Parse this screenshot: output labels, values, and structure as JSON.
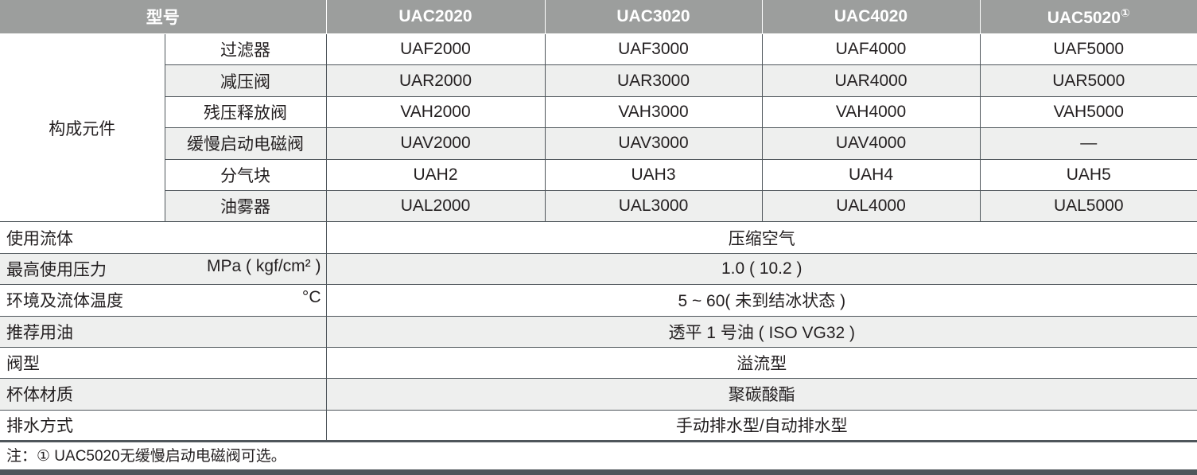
{
  "header": {
    "model_label": "型号",
    "models": [
      "UAC2020",
      "UAC3020",
      "UAC4020",
      "UAC5020"
    ],
    "footnote_mark": "①"
  },
  "components": {
    "group_label": "构成元件",
    "rows": [
      {
        "name": "过滤器",
        "values": [
          "UAF2000",
          "UAF3000",
          "UAF4000",
          "UAF5000"
        ]
      },
      {
        "name": "减压阀",
        "values": [
          "UAR2000",
          "UAR3000",
          "UAR4000",
          "UAR5000"
        ]
      },
      {
        "name": "残压释放阀",
        "values": [
          "VAH2000",
          "VAH3000",
          "VAH4000",
          "VAH5000"
        ]
      },
      {
        "name": "缓慢启动电磁阀",
        "values": [
          "UAV2000",
          "UAV3000",
          "UAV4000",
          "—"
        ]
      },
      {
        "name": "分气块",
        "values": [
          "UAH2",
          "UAH3",
          "UAH4",
          "UAH5"
        ]
      },
      {
        "name": "油雾器",
        "values": [
          "UAL2000",
          "UAL3000",
          "UAL4000",
          "UAL5000"
        ]
      }
    ]
  },
  "specs": [
    {
      "label": "使用流体",
      "unit": "",
      "value": "压缩空气"
    },
    {
      "label": "最高使用压力",
      "unit": "MPa ( kgf/cm² )",
      "value": "1.0 ( 10.2 )"
    },
    {
      "label": "环境及流体温度",
      "unit": "°C",
      "value": "5 ~ 60( 未到结冰状态 )"
    },
    {
      "label": "推荐用油",
      "unit": "",
      "value": "透平 1 号油 ( ISO VG32 )"
    },
    {
      "label": "阀型",
      "unit": "",
      "value": "溢流型"
    },
    {
      "label": "杯体材质",
      "unit": "",
      "value": "聚碳酸酯"
    },
    {
      "label": "排水方式",
      "unit": "",
      "value": "手动排水型/自动排水型"
    }
  ],
  "note": "注：① UAC5020无缓慢启动电磁阀可选。"
}
